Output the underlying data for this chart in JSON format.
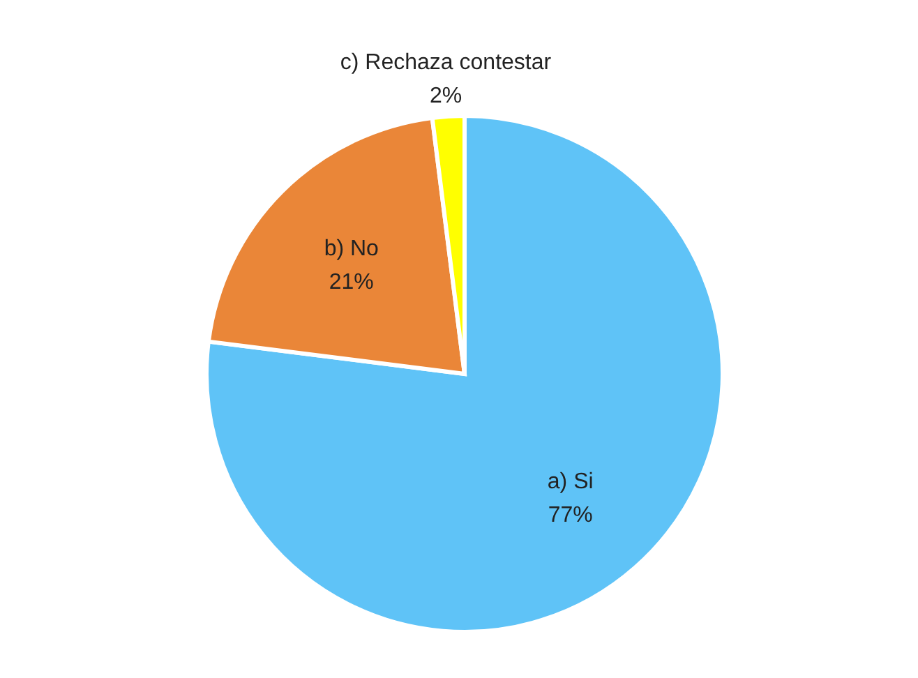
{
  "chart_data": {
    "type": "pie",
    "categories": [
      "a)    Si",
      "b)    No",
      "c)    Rechaza contestar"
    ],
    "values": [
      77,
      21,
      2
    ],
    "value_labels": [
      "77%",
      "21%",
      "2%"
    ],
    "colors": [
      "#5fc3f7",
      "#ea8638",
      "#ffff00"
    ]
  }
}
